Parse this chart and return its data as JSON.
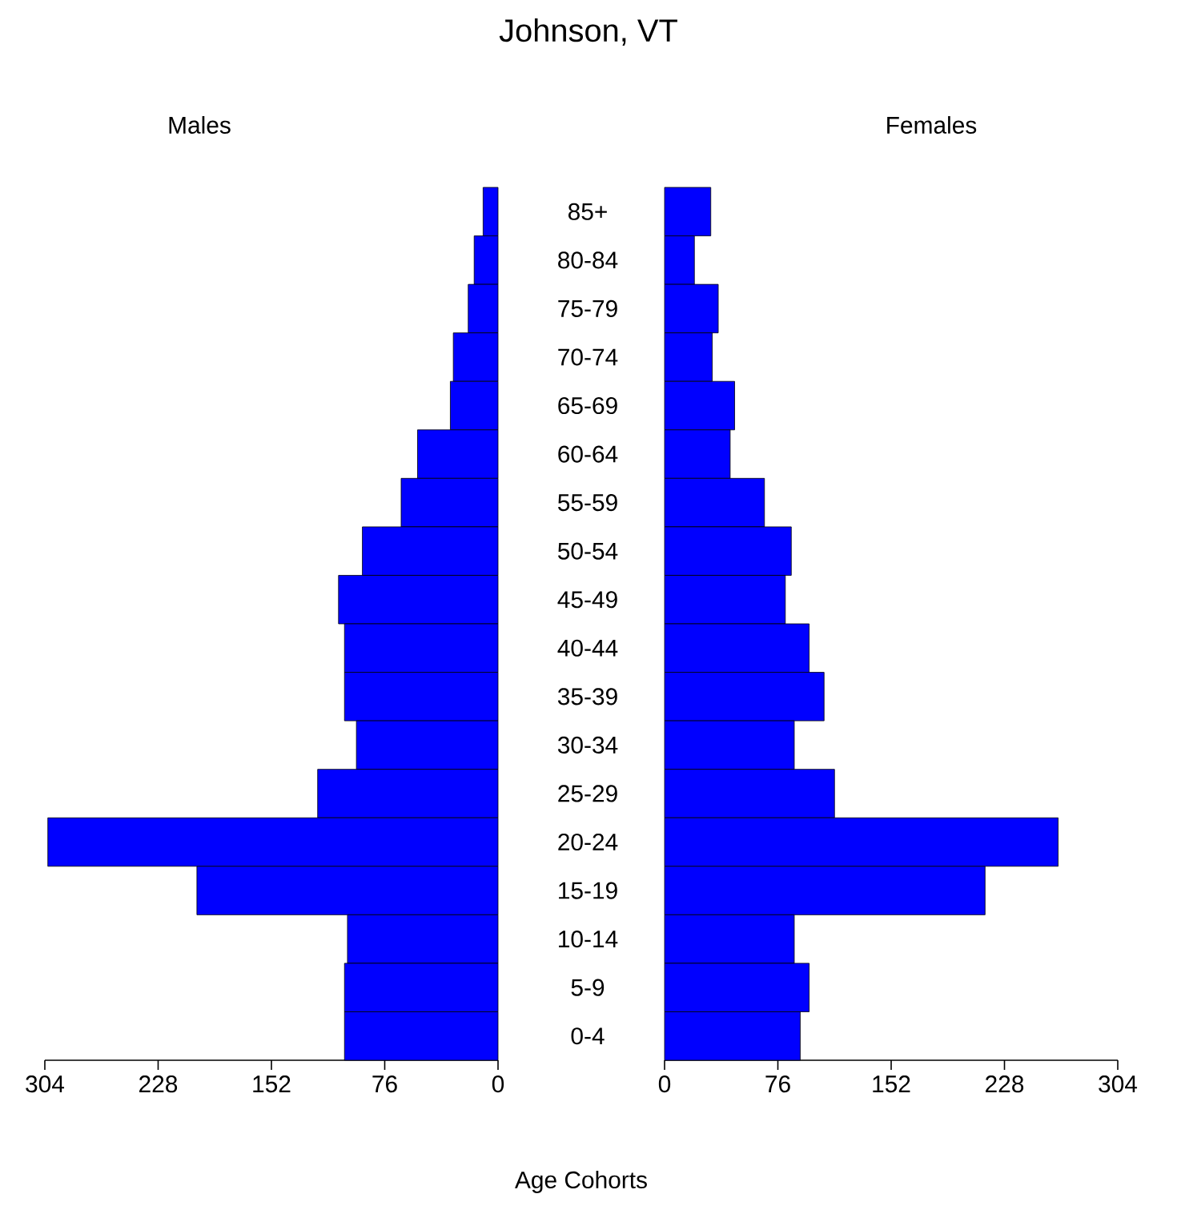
{
  "chart_data": [
    {
      "type": "bar",
      "orientation": "horizontal",
      "title": "Johnson, VT",
      "subtitle": "Males",
      "categories": [
        "85+",
        "80-84",
        "75-79",
        "70-74",
        "65-69",
        "60-64",
        "55-59",
        "50-54",
        "45-49",
        "40-44",
        "35-39",
        "30-34",
        "25-29",
        "20-24",
        "15-19",
        "10-14",
        "5-9",
        "0-4"
      ],
      "values": [
        10,
        16,
        20,
        30,
        32,
        54,
        65,
        91,
        107,
        103,
        103,
        95,
        121,
        302,
        202,
        101,
        103,
        103
      ],
      "color": "#0000ff",
      "xlim": [
        304,
        0
      ],
      "xticks": [
        304,
        228,
        152,
        76,
        0
      ]
    },
    {
      "type": "bar",
      "orientation": "horizontal",
      "subtitle": "Females",
      "ylabel": "Age Cohorts",
      "categories": [
        null,
        null,
        null,
        null,
        null,
        null,
        null,
        null,
        null,
        null,
        null,
        null,
        null,
        null,
        null,
        null,
        null,
        null
      ],
      "values": [
        31,
        20,
        36,
        32,
        47,
        44,
        67,
        85,
        81,
        97,
        107,
        87,
        114,
        264,
        215,
        87,
        97,
        91
      ],
      "color": "#0000ff",
      "xlim": [
        0,
        304
      ],
      "xticks": [
        0,
        76,
        152,
        228,
        304
      ],
      "tick_labels": "x"
    }
  ]
}
